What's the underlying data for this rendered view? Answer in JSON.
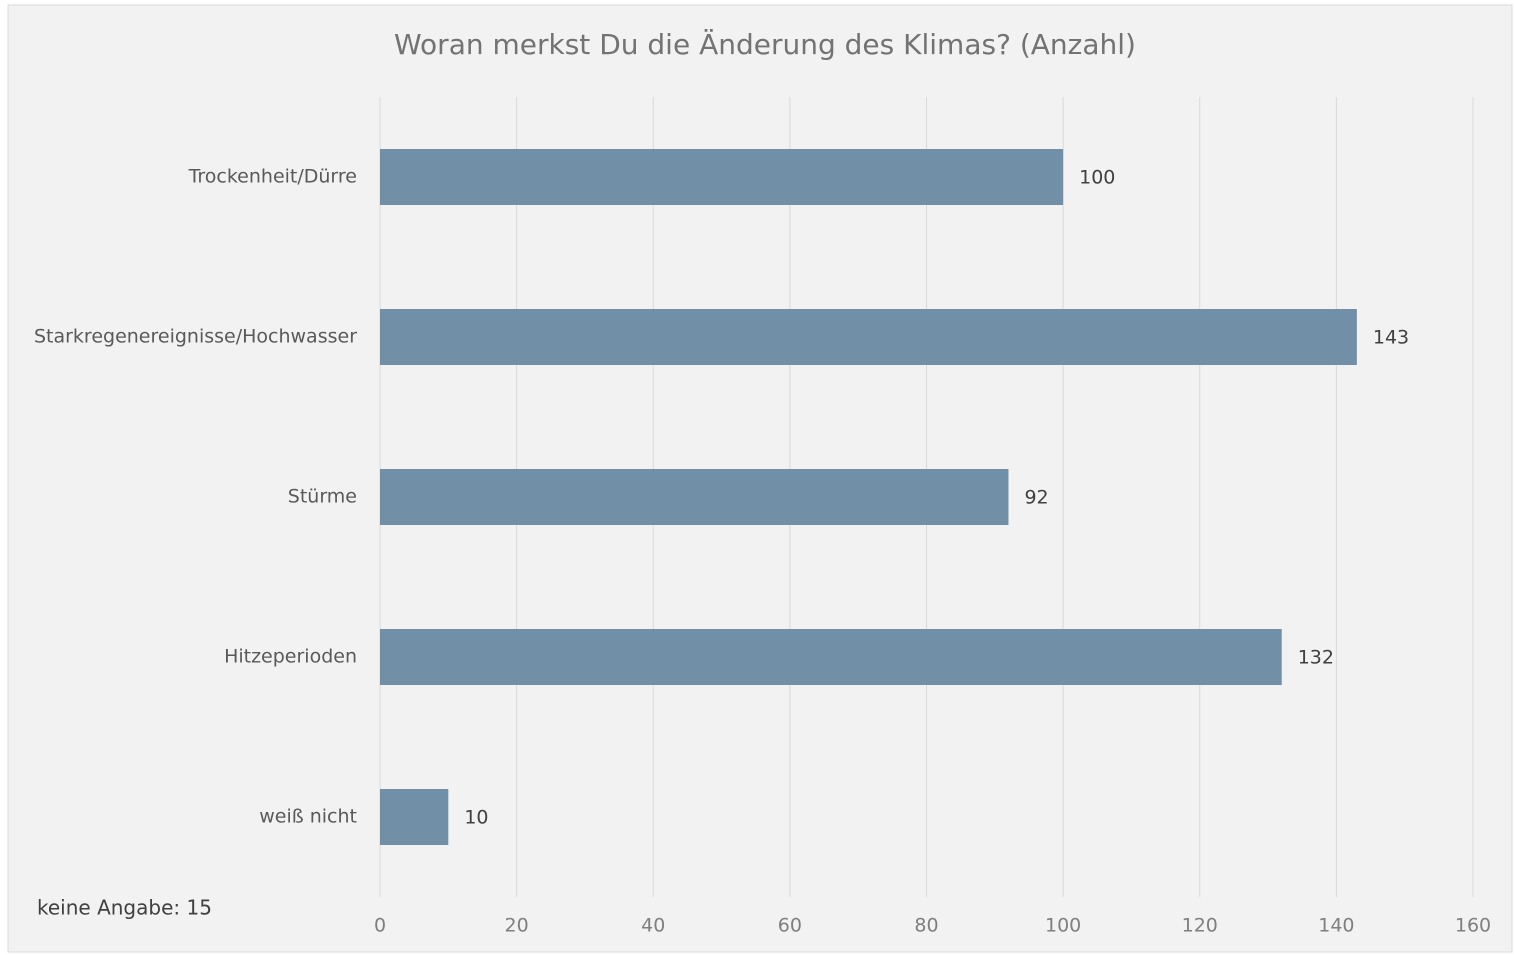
{
  "chart_data": {
    "type": "hbar",
    "title": "Woran merkst Du die Änderung des Klimas? (Anzahl)",
    "categories": [
      "Trockenheit/Dürre",
      "Starkregenereignisse/Hochwasser",
      "Stürme",
      "Hitzeperioden",
      "weiß nicht"
    ],
    "values": [
      100,
      143,
      92,
      132,
      10
    ],
    "color": "#718fa6",
    "xlim": [
      0,
      160
    ],
    "xticks": [
      0,
      20,
      40,
      60,
      80,
      100,
      120,
      140,
      160
    ],
    "grid": true,
    "annotation": "keine Angabe: 15"
  }
}
